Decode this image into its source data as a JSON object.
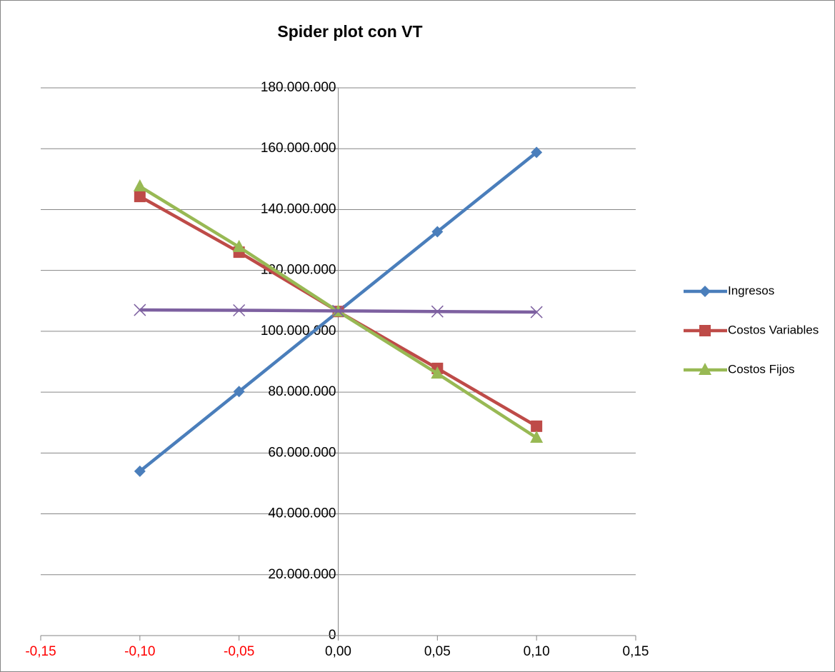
{
  "chart_data": {
    "type": "line",
    "title": "Spider plot con VT",
    "x": [
      -0.1,
      -0.05,
      0,
      0.05,
      0.1
    ],
    "series": [
      {
        "name": "Ingresos",
        "color": "#4a7ebb",
        "marker": "diamond",
        "values": [
          54000000,
          80200000,
          106500000,
          132700000,
          158800000
        ]
      },
      {
        "name": "Costos Variables",
        "color": "#be4b48",
        "marker": "square",
        "values": [
          144300000,
          126000000,
          106500000,
          87800000,
          68800000
        ]
      },
      {
        "name": "Costos Fijos",
        "color": "#98b954",
        "marker": "triangle",
        "values": [
          147600000,
          127700000,
          106500000,
          86100000,
          65000000
        ]
      },
      {
        "color": "#7d60a0",
        "marker": "x",
        "values": [
          107000000,
          106900000,
          106700000,
          106500000,
          106300000
        ]
      }
    ],
    "xlim": [
      -0.15,
      0.15
    ],
    "xticks": [
      {
        "value": -0.15,
        "label": "-0,15"
      },
      {
        "value": -0.1,
        "label": "-0,10"
      },
      {
        "value": -0.05,
        "label": "-0,05"
      },
      {
        "value": 0,
        "label": "0,00"
      },
      {
        "value": 0.05,
        "label": "0,05"
      },
      {
        "value": 0.1,
        "label": "0,10"
      },
      {
        "value": 0.15,
        "label": "0,15"
      }
    ],
    "negative_tick_color": "#ff0000",
    "ylim": [
      0,
      180000000
    ],
    "yticks": [
      0,
      {
        "value": 20000000,
        "label": "20.000.000"
      },
      {
        "value": 40000000,
        "label": "40.000.000"
      },
      {
        "value": 60000000,
        "label": "60.000.000"
      },
      {
        "value": 80000000,
        "label": "80.000.000"
      },
      {
        "value": 100000000,
        "label": "100.000.000"
      },
      {
        "value": 120000000,
        "label": "120.000.000"
      },
      {
        "value": 140000000,
        "label": "140.000.000"
      },
      {
        "value": 160000000,
        "label": "160.000.000"
      },
      {
        "value": 180000000,
        "label": "180.000.000"
      }
    ],
    "grid": true,
    "legend": "right"
  }
}
